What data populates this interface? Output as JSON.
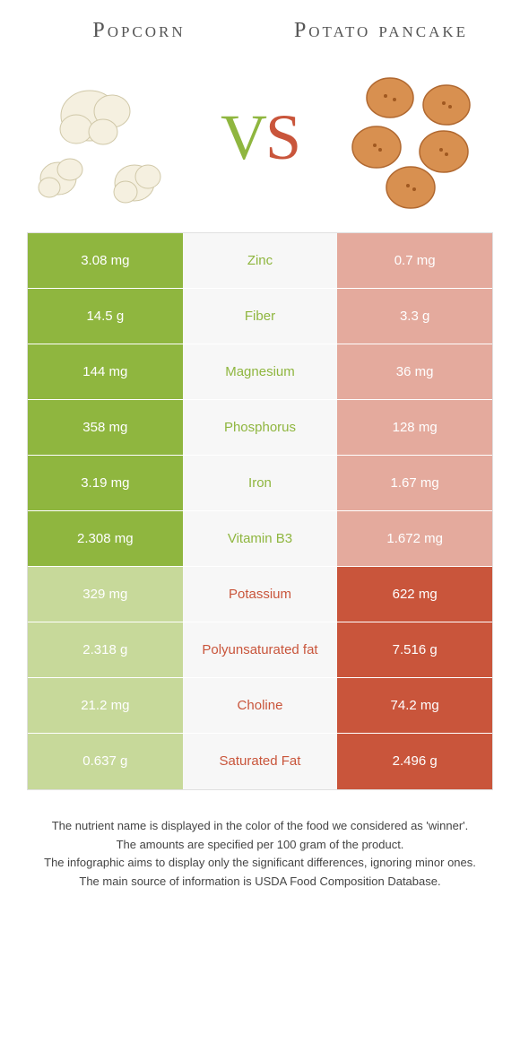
{
  "header": {
    "left_title": "Popcorn",
    "right_title": "Potato pancake",
    "vs_v": "V",
    "vs_s": "S"
  },
  "colors": {
    "left_win": "#8fb63f",
    "right_win": "#c9553b",
    "left_lose": "#c7d99a",
    "right_lose": "#e4aa9d",
    "mid_bg": "#f7f7f7",
    "nutrient_left_color": "#8fb63f",
    "nutrient_right_color": "#c9553b"
  },
  "rows": [
    {
      "nutrient": "Zinc",
      "left": "3.08 mg",
      "right": "0.7 mg",
      "winner": "left"
    },
    {
      "nutrient": "Fiber",
      "left": "14.5 g",
      "right": "3.3 g",
      "winner": "left"
    },
    {
      "nutrient": "Magnesium",
      "left": "144 mg",
      "right": "36 mg",
      "winner": "left"
    },
    {
      "nutrient": "Phosphorus",
      "left": "358 mg",
      "right": "128 mg",
      "winner": "left"
    },
    {
      "nutrient": "Iron",
      "left": "3.19 mg",
      "right": "1.67 mg",
      "winner": "left"
    },
    {
      "nutrient": "Vitamin B3",
      "left": "2.308 mg",
      "right": "1.672 mg",
      "winner": "left"
    },
    {
      "nutrient": "Potassium",
      "left": "329 mg",
      "right": "622 mg",
      "winner": "right"
    },
    {
      "nutrient": "Polyunsaturated fat",
      "left": "2.318 g",
      "right": "7.516 g",
      "winner": "right"
    },
    {
      "nutrient": "Choline",
      "left": "21.2 mg",
      "right": "74.2 mg",
      "winner": "right"
    },
    {
      "nutrient": "Saturated Fat",
      "left": "0.637 g",
      "right": "2.496 g",
      "winner": "right"
    }
  ],
  "footer": {
    "line1": "The nutrient name is displayed in the color of the food we considered as 'winner'.",
    "line2": "The amounts are specified per 100 gram of the product.",
    "line3": "The infographic aims to display only the significant differences, ignoring minor ones.",
    "line4": "The main source of information is USDA Food Composition Database."
  }
}
